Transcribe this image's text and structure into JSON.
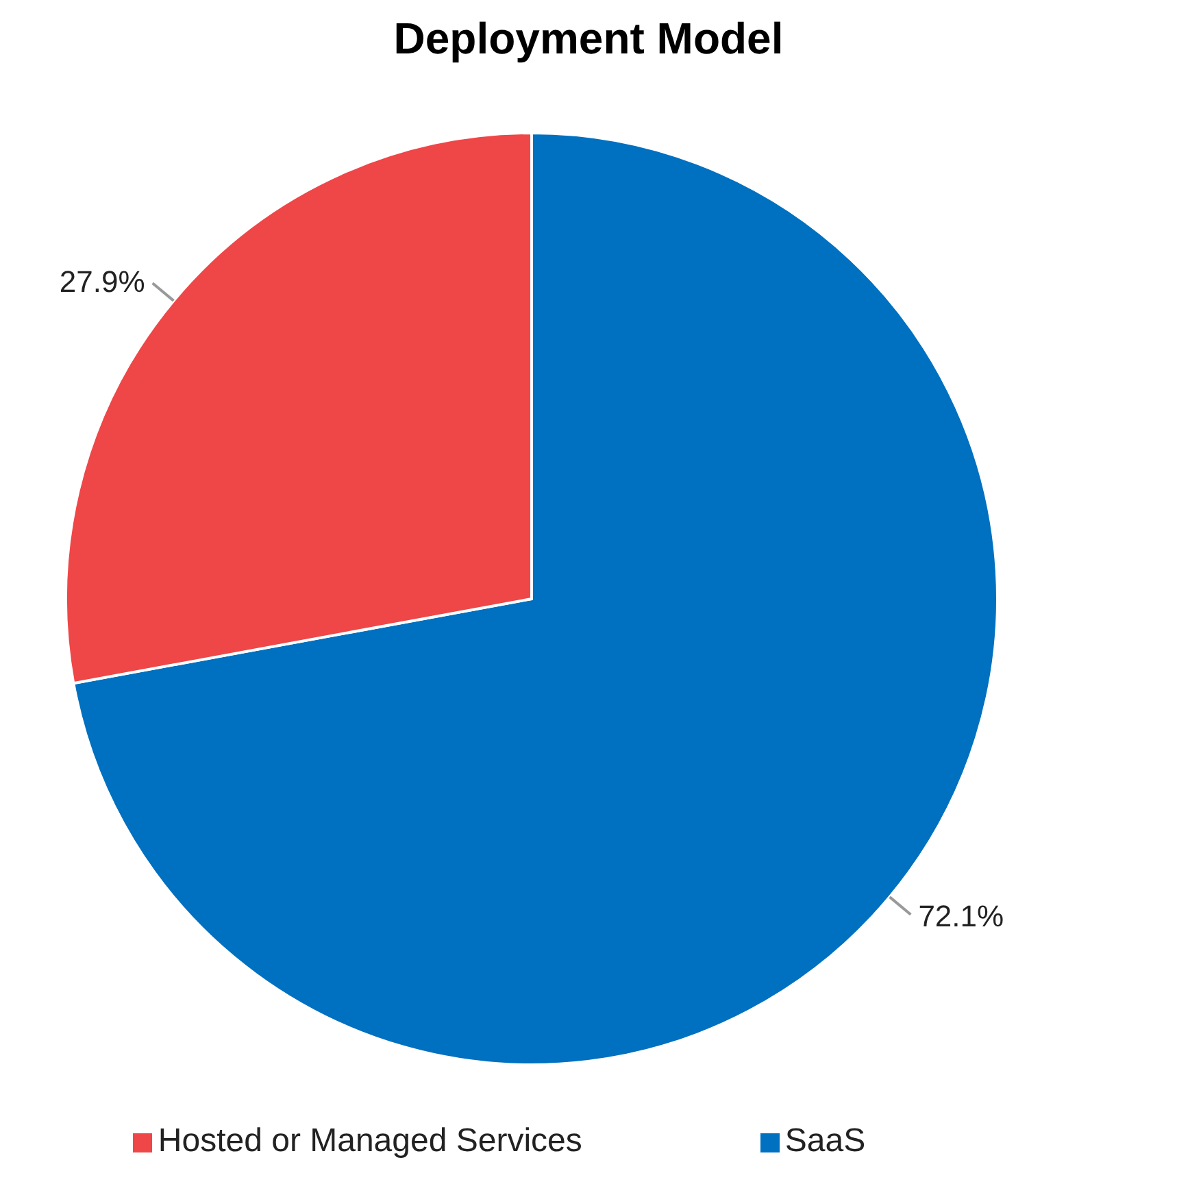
{
  "chart_data": {
    "type": "pie",
    "title": "Deployment Model",
    "categories": [
      "SaaS",
      "Hosted or Managed Services"
    ],
    "values": [
      72.1,
      27.9
    ],
    "colors": [
      "#0070c0",
      "#ef4647"
    ],
    "value_labels": [
      "72.1%",
      "27.9%"
    ],
    "legend": "bottom"
  }
}
